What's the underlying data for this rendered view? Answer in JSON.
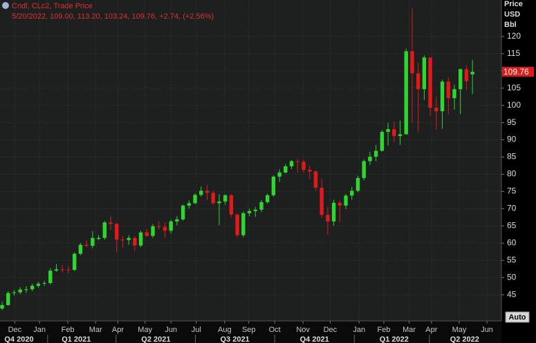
{
  "chart_data": {
    "type": "candlestick",
    "title": "Cndl, CLc2, Trade Price",
    "subtitle": "5/20/2022, 109.00, 113.20, 103.24, 109.76, +2.74, (+2.56%)",
    "y_axis_label": [
      "Price",
      "USD",
      "Bbl"
    ],
    "button": "Auto",
    "up_color": "#2fd62f",
    "down_color": "#e01a1a",
    "grid": true,
    "open": [
      41,
      42,
      45.5,
      45.7,
      46.5,
      46.6,
      47.6,
      48.2,
      48.4,
      52,
      52.4,
      52.3,
      52.2,
      56.9,
      59.5,
      59.2,
      61.2,
      61.5,
      66,
      65.6,
      61,
      60.9,
      61.5,
      59.3,
      63.1,
      62.1,
      64.9,
      64.7,
      63.6,
      66.3,
      66.9,
      70.9,
      71.6,
      74,
      75.2,
      74.6,
      71.6,
      72.1,
      73.9,
      68.3,
      62.3,
      68.7,
      69.3,
      69.7,
      71.9,
      73.9,
      79.3,
      80.5,
      82.3,
      83.8,
      83.6,
      81.3,
      80.8,
      76.1,
      68.2,
      66.3,
      71.7,
      70.9,
      73.8,
      75.2,
      78.9,
      83.8,
      85.1,
      86.8,
      92.3,
      93.1,
      91.1,
      91.6,
      115.7,
      109.3,
      104.7,
      113.9,
      99.3,
      98.3,
      106.9,
      102.1,
      104.7,
      110.5,
      109
    ],
    "high": [
      43,
      46,
      46.3,
      47.2,
      47.5,
      48.2,
      48.8,
      49,
      52.7,
      53.9,
      53.6,
      53.3,
      57.3,
      60,
      60.9,
      63.5,
      62.3,
      66.4,
      67.9,
      65.8,
      62,
      62.3,
      61.9,
      63.6,
      64.2,
      65.5,
      66.4,
      66,
      66.8,
      67.8,
      71.2,
      72.4,
      74.5,
      76.4,
      76.9,
      75.2,
      74.2,
      74.2,
      74.3,
      68.6,
      69.2,
      70,
      70.5,
      72.5,
      74.4,
      79.7,
      81.4,
      83,
      84.1,
      84.4,
      84.2,
      82.5,
      81.1,
      78.7,
      70.5,
      72.6,
      72.4,
      74.3,
      76.3,
      79.6,
      84.3,
      86.5,
      88.5,
      92.8,
      94.9,
      95.2,
      95.6,
      116.5,
      128.2,
      112.4,
      114.5,
      114,
      102.5,
      107.5,
      108.2,
      106,
      110.7,
      111.5,
      113.2
    ],
    "low": [
      40.5,
      41.8,
      44.8,
      45.2,
      45.5,
      46,
      47.1,
      47.6,
      48,
      51.7,
      51.5,
      51.2,
      51.9,
      56.5,
      58.8,
      58.5,
      60.8,
      61,
      63.8,
      57.3,
      58.5,
      59.5,
      57.6,
      58.8,
      61.7,
      61.5,
      63.9,
      61.5,
      62.8,
      65.2,
      66.5,
      70,
      71.3,
      73.5,
      72.5,
      71.1,
      65.2,
      71.2,
      67.5,
      61.7,
      61.7,
      67.8,
      67.6,
      69,
      71.5,
      73.5,
      77.8,
      80.2,
      81.5,
      80.5,
      80.4,
      78.5,
      75.3,
      67.4,
      62.4,
      65,
      66.1,
      69.9,
      72.6,
      74.7,
      78.2,
      82.7,
      83.8,
      86.6,
      88.4,
      89.3,
      88.5,
      91.5,
      95,
      92.2,
      101.6,
      96.9,
      92.9,
      93.2,
      97.4,
      98.8,
      97.5,
      104.5,
      103.24
    ],
    "close": [
      42,
      45.5,
      45.7,
      46.5,
      46.6,
      47.6,
      48.2,
      48.4,
      52,
      52.4,
      52.3,
      52.2,
      56.9,
      59.5,
      59.2,
      61.5,
      61.5,
      66,
      65.6,
      61,
      60.9,
      61.5,
      59.3,
      63.1,
      62.1,
      64.9,
      64.7,
      63.6,
      66.3,
      66.9,
      70.9,
      71.6,
      74,
      75.2,
      74.6,
      71.6,
      72.1,
      73.9,
      68.3,
      62.3,
      68.7,
      69.3,
      69.7,
      71.9,
      73.9,
      79.3,
      80.5,
      82.3,
      83.8,
      83.6,
      81.3,
      80.8,
      76.1,
      68.2,
      66.3,
      71.7,
      70.9,
      73.8,
      75.2,
      78.9,
      83.8,
      85.1,
      86.8,
      92.3,
      93.1,
      91.1,
      91.6,
      115.7,
      109.3,
      104.7,
      113.9,
      99.3,
      98.3,
      106.9,
      102.1,
      104.7,
      110.5,
      107.02,
      109.76
    ],
    "ylim": [
      37.4,
      130.6
    ],
    "yticks": [
      45,
      50,
      55,
      60,
      65,
      70,
      75,
      80,
      85,
      90,
      95,
      100,
      105,
      110,
      115,
      120
    ],
    "xlim": [
      -0.35,
      82.8
    ],
    "xticks": [
      {
        "value": 2.1,
        "label": "Dec"
      },
      {
        "value": 6.2,
        "label": "Jan"
      },
      {
        "value": 10.9,
        "label": "Feb"
      },
      {
        "value": 15.5,
        "label": "Mar"
      },
      {
        "value": 19.2,
        "label": "Apr"
      },
      {
        "value": 23.7,
        "label": "May"
      },
      {
        "value": 28,
        "label": "Jun"
      },
      {
        "value": 32.2,
        "label": "Jul"
      },
      {
        "value": 36.9,
        "label": "Aug"
      },
      {
        "value": 40.9,
        "label": "Sep"
      },
      {
        "value": 45.2,
        "label": "Oct"
      },
      {
        "value": 49.9,
        "label": "Nov"
      },
      {
        "value": 54.4,
        "label": "Dec"
      },
      {
        "value": 59.2,
        "label": "Jan"
      },
      {
        "value": 63.3,
        "label": "Feb"
      },
      {
        "value": 67.5,
        "label": "Mar"
      },
      {
        "value": 71.2,
        "label": "Apr"
      },
      {
        "value": 75.8,
        "label": "May"
      },
      {
        "value": 80.4,
        "label": "Jun"
      }
    ],
    "quarters": [
      {
        "value": 2.8,
        "label": "Q4 2020"
      },
      {
        "value": 12.3,
        "label": "Q1 2021"
      },
      {
        "value": 25.5,
        "label": "Q2 2021"
      },
      {
        "value": 38.6,
        "label": "Q3 2021"
      },
      {
        "value": 51.8,
        "label": "Q4 2021"
      },
      {
        "value": 65,
        "label": "Q1 2022"
      },
      {
        "value": 76.7,
        "label": "Q2 2022"
      }
    ]
  }
}
